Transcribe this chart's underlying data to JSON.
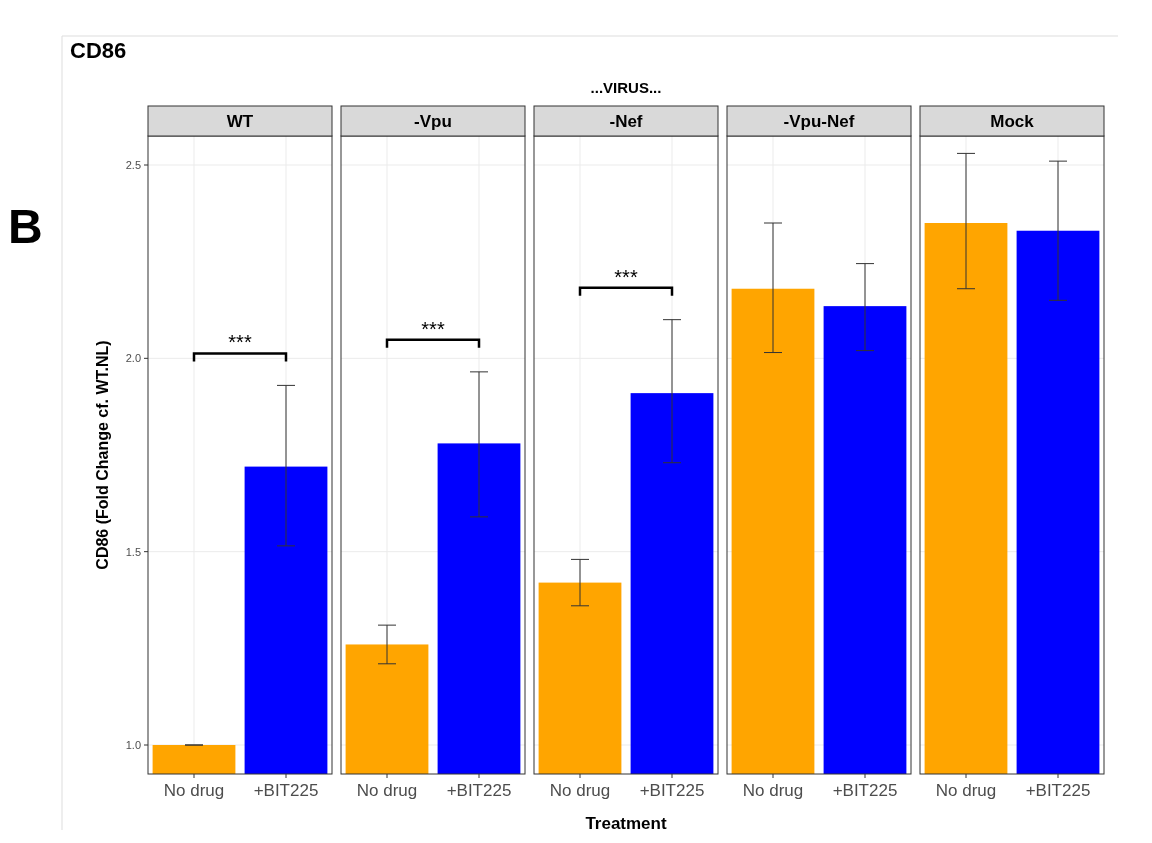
{
  "chart_data": [
    {
      "type": "bar",
      "title": "WT",
      "ylabel": "CD86 (Fold Change cf. WT.NL)",
      "annotations": [
        "B",
        "CD86",
        "...VIRUS...",
        "***"
      ],
      "categories": [
        "No drug",
        "+BIT225"
      ],
      "values": [
        1.0,
        1.72
      ],
      "colors": [
        "#ffa500",
        "#0000ff"
      ],
      "errors": [
        [
          1.0,
          1.0
        ],
        [
          1.515,
          1.93
        ]
      ],
      "ylim": [
        0.925,
        2.575
      ],
      "yticks": [
        {
          "value": 1,
          "label": "1.0"
        },
        {
          "value": 1.5,
          "label": "1.5"
        },
        {
          "value": 2,
          "label": "2.0"
        },
        {
          "value": 2.5,
          "label": "2.5"
        }
      ],
      "grid": true,
      "tick_labels": true
    },
    {
      "type": "bar",
      "title": "-Vpu",
      "annotations": [
        "***"
      ],
      "categories": [
        "No drug",
        "+BIT225"
      ],
      "values": [
        1.26,
        1.78
      ],
      "colors": [
        "#ffa500",
        "#0000ff"
      ],
      "errors": [
        [
          1.21,
          1.31
        ],
        [
          1.59,
          1.965
        ]
      ],
      "ylim": [
        0.925,
        2.575
      ],
      "yticks": [
        {
          "value": 1,
          "label": null
        },
        {
          "value": 1.5,
          "label": null
        },
        {
          "value": 2,
          "label": null
        },
        {
          "value": 2.5,
          "label": null
        }
      ],
      "grid": true,
      "tick_labels": "x"
    },
    {
      "type": "bar",
      "title": "-Nef",
      "xlabel": "Treatment",
      "annotations": [
        "***"
      ],
      "categories": [
        "No drug",
        "+BIT225"
      ],
      "values": [
        1.42,
        1.91
      ],
      "colors": [
        "#ffa500",
        "#0000ff"
      ],
      "errors": [
        [
          1.36,
          1.48
        ],
        [
          1.73,
          2.1
        ]
      ],
      "ylim": [
        0.925,
        2.575
      ],
      "yticks": [
        {
          "value": 1,
          "label": null
        },
        {
          "value": 1.5,
          "label": null
        },
        {
          "value": 2,
          "label": null
        },
        {
          "value": 2.5,
          "label": null
        }
      ],
      "grid": true,
      "tick_labels": "x"
    },
    {
      "type": "bar",
      "title": "-Vpu-Nef",
      "categories": [
        "No drug",
        "+BIT225"
      ],
      "values": [
        2.18,
        2.135
      ],
      "colors": [
        "#ffa500",
        "#0000ff"
      ],
      "errors": [
        [
          2.015,
          2.35
        ],
        [
          2.02,
          2.245
        ]
      ],
      "ylim": [
        0.925,
        2.575
      ],
      "yticks": [
        {
          "value": 1,
          "label": null
        },
        {
          "value": 1.5,
          "label": null
        },
        {
          "value": 2,
          "label": null
        },
        {
          "value": 2.5,
          "label": null
        }
      ],
      "grid": true,
      "tick_labels": "x"
    },
    {
      "type": "bar",
      "title": "Mock",
      "categories": [
        "No drug",
        "+BIT225"
      ],
      "values": [
        2.35,
        2.33
      ],
      "colors": [
        "#ffa500",
        "#0000ff"
      ],
      "errors": [
        [
          2.18,
          2.53
        ],
        [
          2.15,
          2.51
        ]
      ],
      "ylim": [
        0.925,
        2.575
      ],
      "yticks": [
        {
          "value": 1,
          "label": null
        },
        {
          "value": 1.5,
          "label": null
        },
        {
          "value": 2,
          "label": null
        },
        {
          "value": 2.5,
          "label": null
        }
      ],
      "grid": true,
      "tick_labels": "x"
    }
  ]
}
